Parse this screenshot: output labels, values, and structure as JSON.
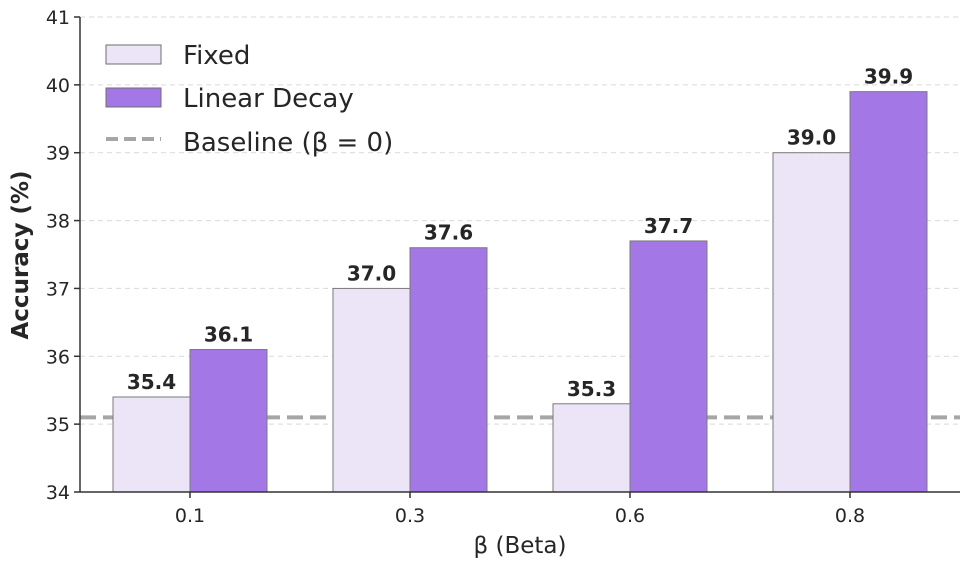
{
  "chart_data": {
    "type": "bar",
    "title": "",
    "xlabel": "β (Beta)",
    "ylabel": "Accuracy (%)",
    "categories": [
      "0.1",
      "0.3",
      "0.6",
      "0.8"
    ],
    "series": [
      {
        "name": "Fixed",
        "values": [
          35.4,
          37.0,
          35.3,
          39.0
        ],
        "color": "#ebe5f7",
        "labels": [
          "35.4",
          "37.0",
          "35.3",
          "39.0"
        ]
      },
      {
        "name": "Linear Decay",
        "values": [
          36.1,
          37.6,
          37.7,
          39.9
        ],
        "color": "#a378e6",
        "labels": [
          "36.1",
          "37.6",
          "37.7",
          "39.9"
        ]
      }
    ],
    "baseline": {
      "name": "Baseline (β = 0)",
      "value": 35.1,
      "color": "#a6a6a6"
    },
    "ylim": [
      34,
      41
    ],
    "yticks": [
      "34",
      "35",
      "36",
      "37",
      "38",
      "39",
      "40",
      "41"
    ],
    "grid": true,
    "legend_position": "top-left"
  }
}
